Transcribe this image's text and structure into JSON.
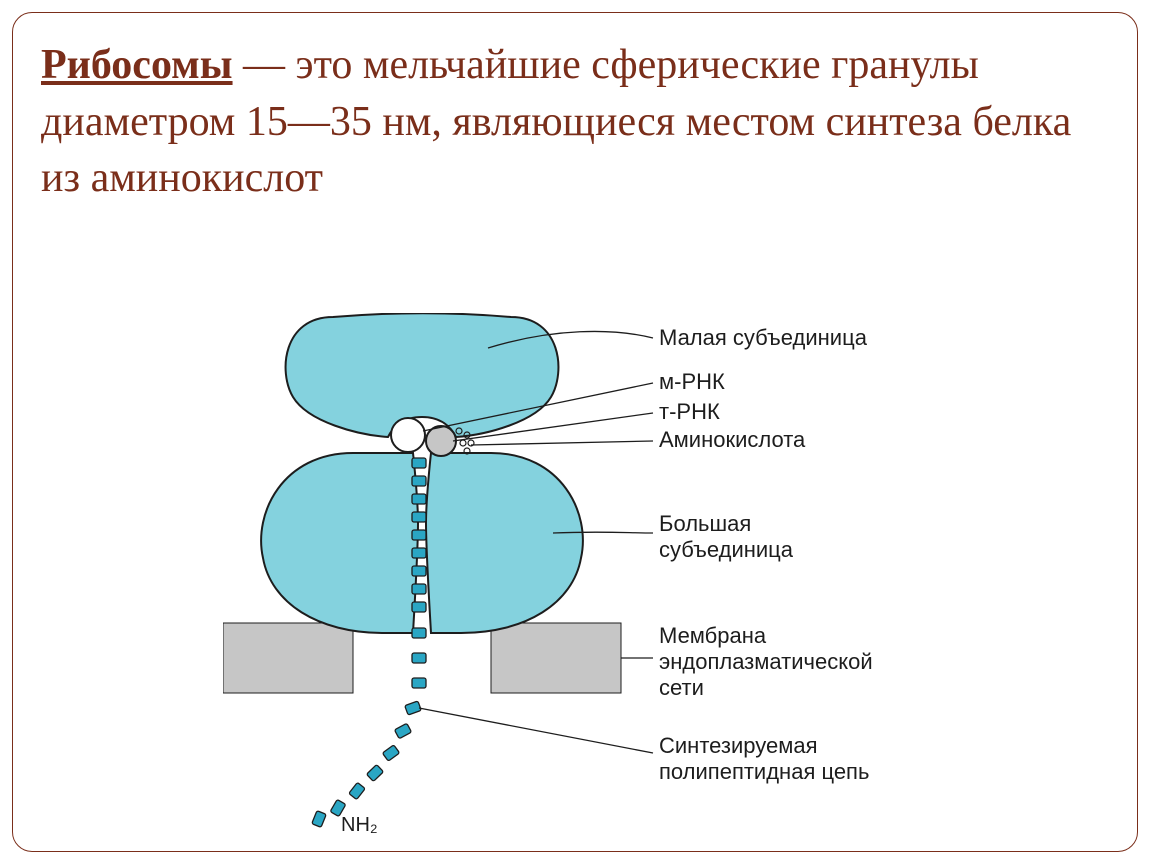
{
  "heading": {
    "term": "Рибосомы",
    "rest": " — это мельчайшие сферические гранулы диаметром 15—35 нм, являющиеся местом синтеза белка из аминокислот"
  },
  "diagram": {
    "type": "infographic",
    "background_color": "#ffffff",
    "colors": {
      "subunit_fill": "#84d2de",
      "subunit_stroke": "#1d1d1d",
      "membrane_fill": "#c6c6c6",
      "membrane_stroke": "#1d1d1d",
      "circle_stroke": "#1d1d1d",
      "chain_fill": "#2aa6c4",
      "chain_stroke": "#1d1d1d",
      "leader_stroke": "#1d1d1d",
      "text_color": "#1d1d1d"
    },
    "label_fontsize": 22,
    "label_font": "Arial, Helvetica, sans-serif",
    "labels": {
      "small_subunit": "Малая субъединица",
      "mrna": "м-РНК",
      "trna": "т-РНК",
      "amino": "Аминокислота",
      "large_subunit_l1": "Большая",
      "large_subunit_l2": "субъединица",
      "membrane_l1": "Мембрана",
      "membrane_l2": "эндоплазматической",
      "membrane_l3": "сети",
      "chain_l1": "Синтезируемая",
      "chain_l2": "полипептидная цепь",
      "nh2": "NH₂"
    }
  }
}
